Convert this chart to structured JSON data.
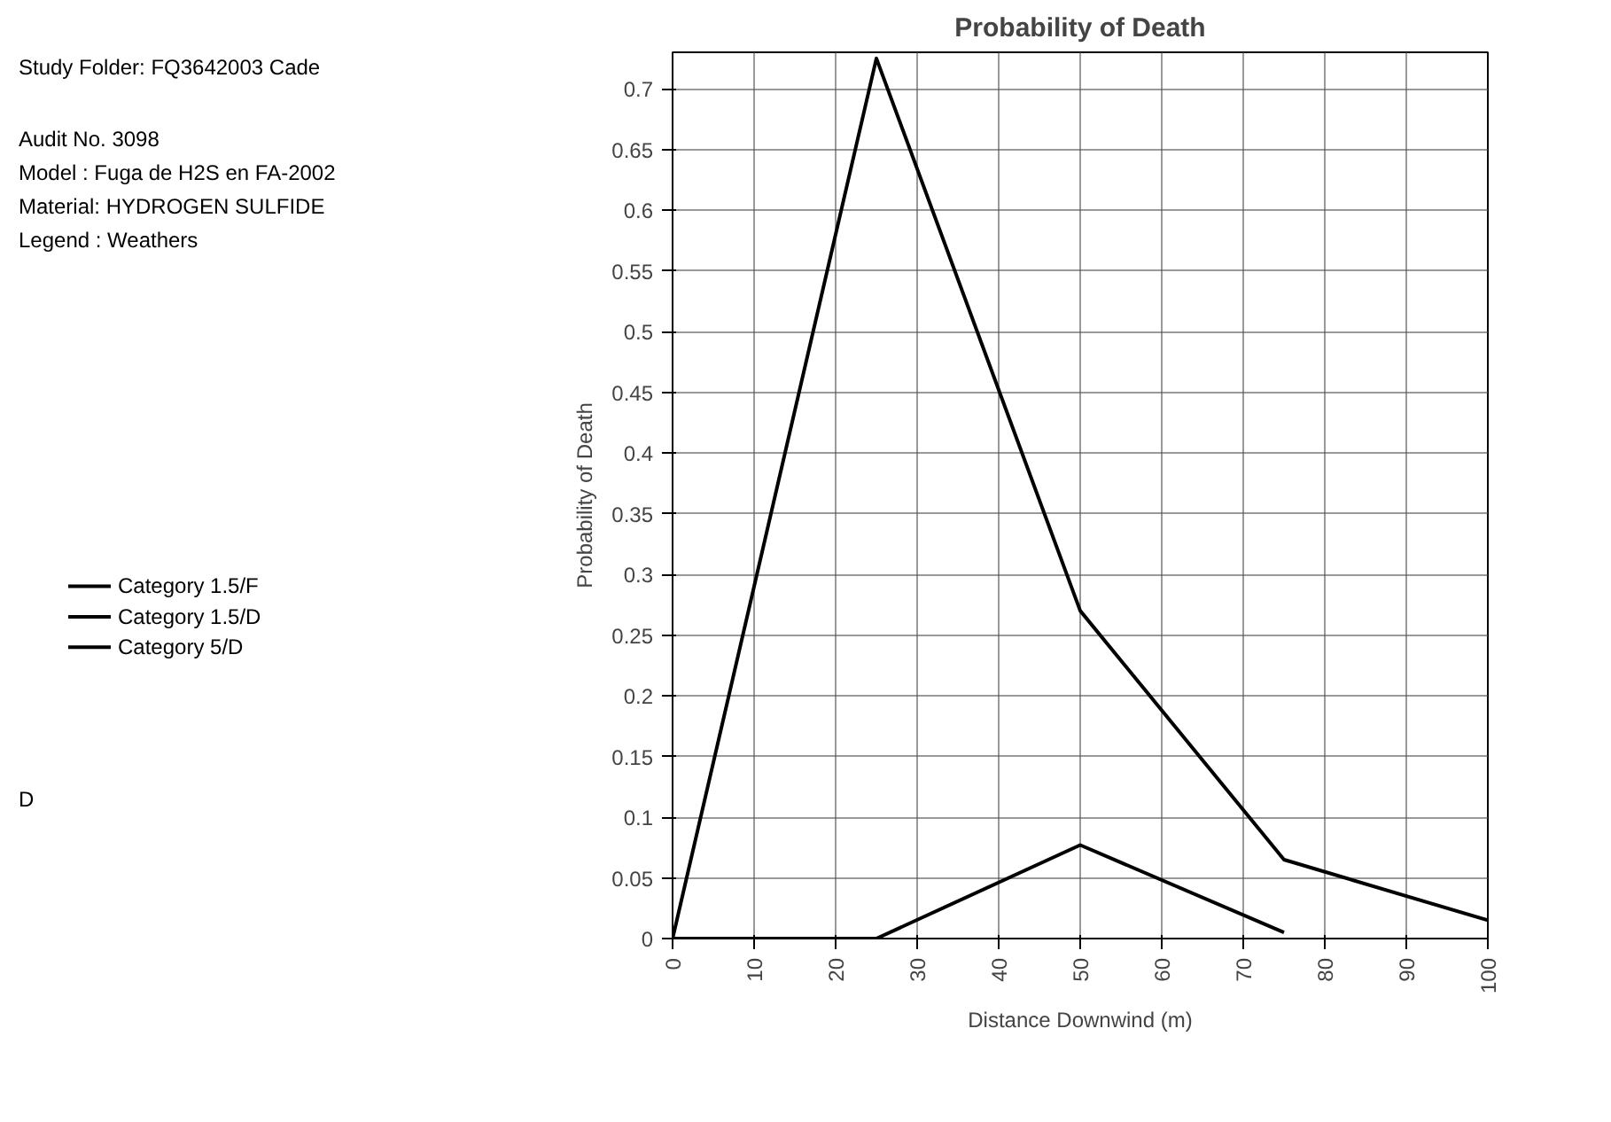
{
  "chart_data": {
    "type": "line",
    "title": "Probability of Death",
    "xlabel": "Distance Downwind (m)",
    "ylabel": "Probability of Death",
    "annotations": [
      "Study Folder: FQ3642003 Cade",
      "Audit No. 3098",
      "Model : Fuga de H2S en FA-2002",
      "Material: HYDROGEN SULFIDE",
      "Legend : Weathers",
      "D"
    ],
    "series": [
      {
        "name": "Category 1.5/F",
        "color": "#000000",
        "x": [
          0,
          25,
          50,
          75,
          100
        ],
        "values": [
          0,
          0.725,
          0.27,
          0.065,
          0.015
        ]
      },
      {
        "name": "Category 1.5/D",
        "color": "#000000",
        "x": [
          0,
          25,
          50,
          75
        ],
        "values": [
          0,
          0,
          0.077,
          0.005
        ]
      },
      {
        "name": "Category 5/D",
        "color": "#000000"
      }
    ],
    "xlim": [
      0,
      100
    ],
    "ylim": [
      0,
      0.73
    ],
    "xticks": [
      0,
      10,
      20,
      30,
      40,
      50,
      60,
      70,
      80,
      90,
      100
    ],
    "yticks": [
      0,
      0.05,
      0.1,
      0.15,
      0.2,
      0.25,
      0.3,
      0.35,
      0.4,
      0.45,
      0.5,
      0.55,
      0.6,
      0.65,
      0.7
    ],
    "grid": true,
    "legend": "left",
    "marker": "none",
    "line_style": "solid"
  }
}
